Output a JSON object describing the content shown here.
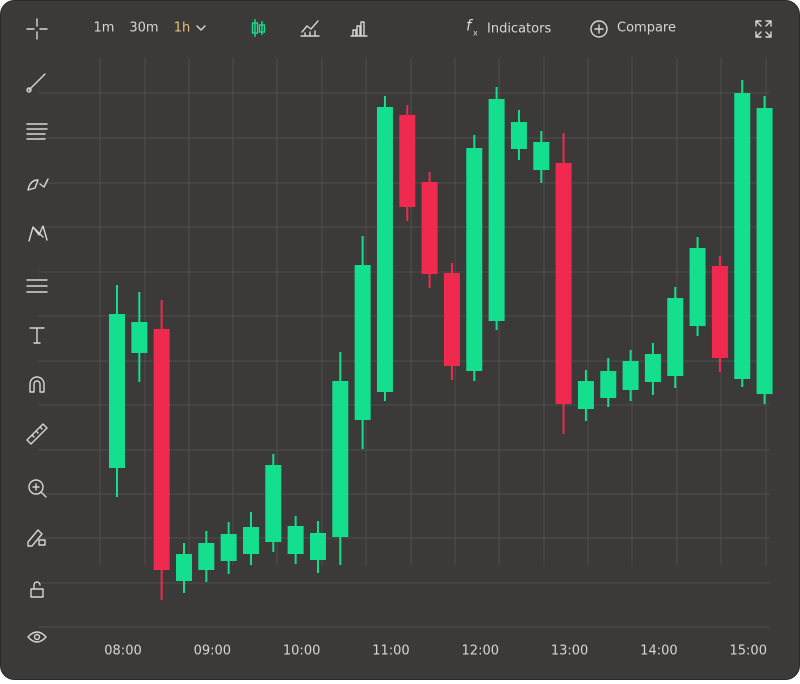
{
  "toolbar": {
    "intervals": [
      "1m",
      "30m",
      "1h"
    ],
    "indicators": "Indicators",
    "compare": "Compare"
  },
  "chart_data": {
    "type": "candlestick",
    "categories": [
      "08:00",
      null,
      null,
      null,
      "09:00",
      null,
      null,
      null,
      "10:00",
      null,
      null,
      null,
      "11:00",
      null,
      null,
      null,
      "12:00",
      null,
      null,
      null,
      "13:00",
      null,
      null,
      null,
      "14:00",
      null,
      null,
      null,
      "15:00",
      null
    ],
    "open": [
      132,
      247,
      271,
      19,
      30,
      39,
      46,
      58,
      46,
      40,
      63,
      180,
      208,
      485,
      418,
      327,
      229,
      279,
      451,
      430,
      437,
      191,
      202,
      210,
      218,
      224,
      274,
      334,
      221,
      206
    ],
    "high": [
      315,
      308,
      300,
      57,
      69,
      78,
      88,
      146,
      84,
      79,
      248,
      364,
      504,
      495,
      428,
      337,
      465,
      513,
      490,
      469,
      467,
      230,
      242,
      250,
      257,
      313,
      363,
      344,
      520,
      504
    ],
    "low": [
      103,
      218,
      0,
      7,
      18,
      26,
      35,
      48,
      36,
      27,
      35,
      151,
      199,
      379,
      312,
      220,
      219,
      270,
      440,
      417,
      166,
      179,
      193,
      199,
      205,
      212,
      264,
      228,
      213,
      196
    ],
    "close": [
      286,
      278,
      30,
      46,
      57,
      66,
      73,
      135,
      74,
      67,
      219,
      335,
      493,
      393,
      326,
      234,
      452,
      501,
      478,
      458,
      196,
      219,
      229,
      239,
      246,
      302,
      352,
      242,
      507,
      492
    ],
    "up_color": "#14df8e",
    "down_color": "#f0294f",
    "ylim": [
      0,
      600
    ]
  }
}
